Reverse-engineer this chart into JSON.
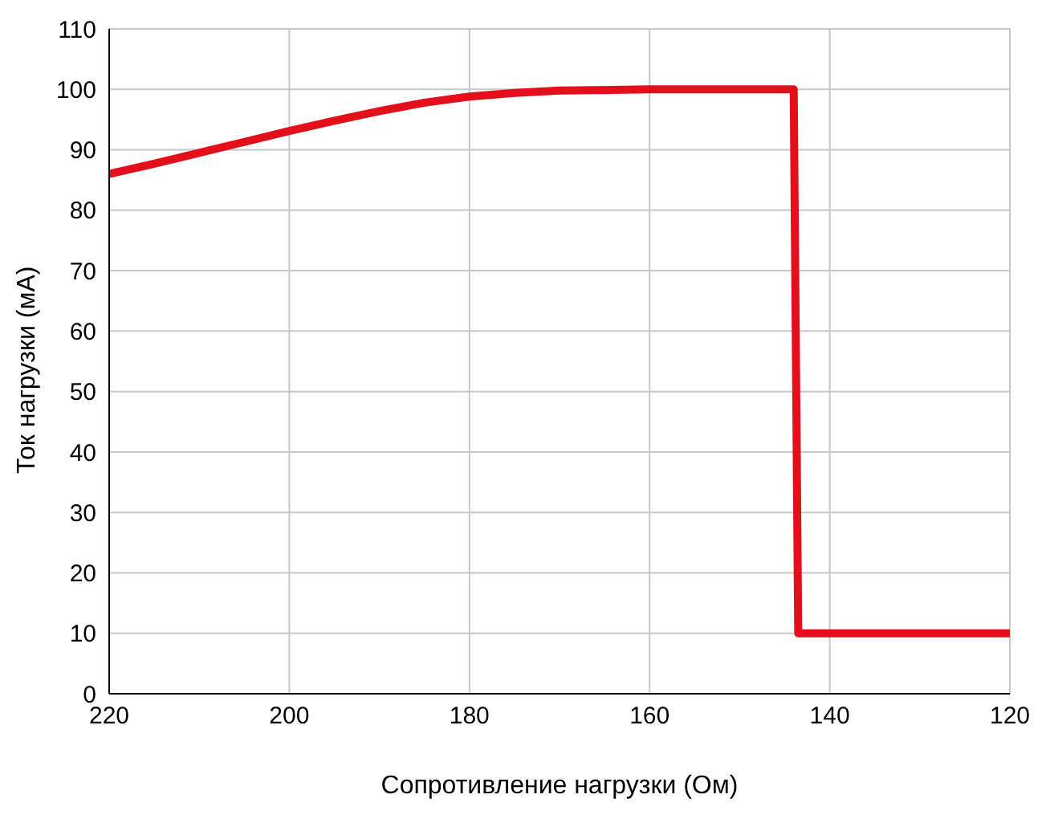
{
  "chart_data": {
    "type": "line",
    "xlabel": "Сопротивление нагрузки (Ом)",
    "ylabel": "Ток нагрузки (мА)",
    "x": [
      220,
      215,
      210,
      205,
      200,
      195,
      190,
      185,
      180,
      175,
      170,
      160,
      150,
      144,
      143.5,
      120
    ],
    "series": [
      {
        "color": "#e3101b",
        "values": [
          86,
          87.7,
          89.5,
          91.3,
          93.1,
          94.8,
          96.4,
          97.8,
          98.8,
          99.4,
          99.8,
          100,
          100,
          100,
          10,
          10
        ]
      }
    ],
    "xlim": [
      220,
      120
    ],
    "xticks": [
      220,
      200,
      180,
      160,
      140,
      120
    ],
    "ylim": [
      0,
      110
    ],
    "yticks": [
      0,
      10,
      20,
      30,
      40,
      50,
      60,
      70,
      80,
      90,
      100,
      110
    ],
    "grid": true,
    "marker": "none",
    "line_style": "solid",
    "legend": false
  }
}
